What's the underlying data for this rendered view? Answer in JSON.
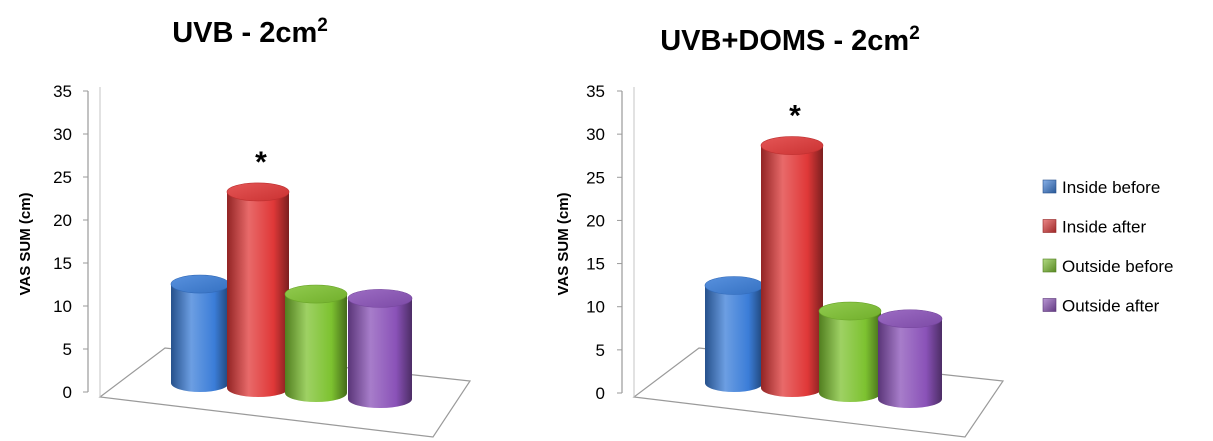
{
  "chart_data": [
    {
      "type": "bar",
      "style": "3d-cylinder",
      "title": "UVB - 2cm",
      "title_superscript": "2",
      "ylabel": "VAS SUM (cm)",
      "ylim": [
        0,
        35
      ],
      "yticks": [
        "0",
        "5",
        "10",
        "15",
        "20",
        "25",
        "30",
        "35"
      ],
      "series": [
        {
          "name": "Inside before",
          "value": 11.5,
          "color": "#3b7dd8"
        },
        {
          "name": "Inside after",
          "value": 22.8,
          "color": "#e03838",
          "annotation": "*"
        },
        {
          "name": "Outside before",
          "value": 11.5,
          "color": "#7dc230"
        },
        {
          "name": "Outside after",
          "value": 11.7,
          "color": "#8a52b8"
        }
      ]
    },
    {
      "type": "bar",
      "style": "3d-cylinder",
      "title": "UVB+DOMS - 2cm",
      "title_superscript": "2",
      "ylabel": "VAS SUM (cm)",
      "ylim": [
        0,
        35
      ],
      "yticks": [
        "0",
        "5",
        "10",
        "15",
        "20",
        "25",
        "30",
        "35"
      ],
      "series": [
        {
          "name": "Inside before",
          "value": 11.3,
          "color": "#3b7dd8"
        },
        {
          "name": "Inside after",
          "value": 28.1,
          "color": "#e03838",
          "annotation": "*"
        },
        {
          "name": "Outside before",
          "value": 9.5,
          "color": "#7dc230"
        },
        {
          "name": "Outside after",
          "value": 9.3,
          "color": "#8a52b8"
        }
      ]
    }
  ],
  "legend": {
    "placement": "right",
    "items": [
      {
        "label": "Inside before",
        "color": "#3b7dd8"
      },
      {
        "label": "Inside after",
        "color": "#e03838"
      },
      {
        "label": "Outside before",
        "color": "#7dc230"
      },
      {
        "label": "Outside after",
        "color": "#8a52b8"
      }
    ]
  }
}
